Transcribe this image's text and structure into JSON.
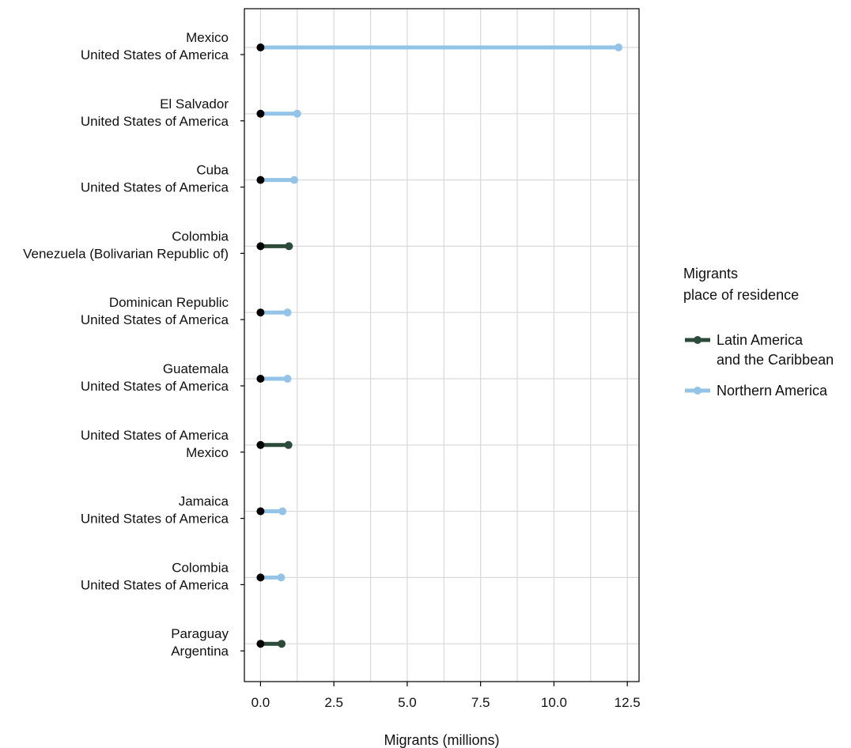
{
  "chart_data": {
    "type": "dumbbell",
    "xlabel": "Migrants (millions)",
    "xlim": [
      -0.55,
      12.9
    ],
    "xticks": [
      0.0,
      2.5,
      5.0,
      7.5,
      10.0,
      12.5
    ],
    "xtick_labels": [
      "0.0",
      "2.5",
      "5.0",
      "7.5",
      "10.0",
      "12.5"
    ],
    "grid": true,
    "legend": {
      "title_lines": [
        "Migrants",
        "place of residence"
      ],
      "placement": "right",
      "entries": [
        {
          "key": "lac",
          "label_lines": [
            "Latin America",
            "and the Caribbean"
          ],
          "color": "#2d4b3b"
        },
        {
          "key": "na",
          "label_lines": [
            "Northern America"
          ],
          "color": "#94c3e8"
        }
      ]
    },
    "start_color": "#000000",
    "rows": [
      {
        "origin": "Mexico",
        "destination": "United States of America",
        "region": "na",
        "start": 0,
        "value": 12.2
      },
      {
        "origin": "El Salvador",
        "destination": "United States of America",
        "region": "na",
        "start": 0,
        "value": 1.25
      },
      {
        "origin": "Cuba",
        "destination": "United States of America",
        "region": "na",
        "start": 0,
        "value": 1.15
      },
      {
        "origin": "Colombia",
        "destination": "Venezuela (Bolivarian Republic of)",
        "region": "lac",
        "start": 0,
        "value": 0.97
      },
      {
        "origin": "Dominican Republic",
        "destination": "United States of America",
        "region": "na",
        "start": 0,
        "value": 0.92
      },
      {
        "origin": "Guatemala",
        "destination": "United States of America",
        "region": "na",
        "start": 0,
        "value": 0.92
      },
      {
        "origin": "United States of America",
        "destination": "Mexico",
        "region": "lac",
        "start": 0,
        "value": 0.95
      },
      {
        "origin": "Jamaica",
        "destination": "United States of America",
        "region": "na",
        "start": 0,
        "value": 0.75
      },
      {
        "origin": "Colombia",
        "destination": "United States of America",
        "region": "na",
        "start": 0,
        "value": 0.7
      },
      {
        "origin": "Paraguay",
        "destination": "Argentina",
        "region": "lac",
        "start": 0,
        "value": 0.72
      }
    ]
  }
}
